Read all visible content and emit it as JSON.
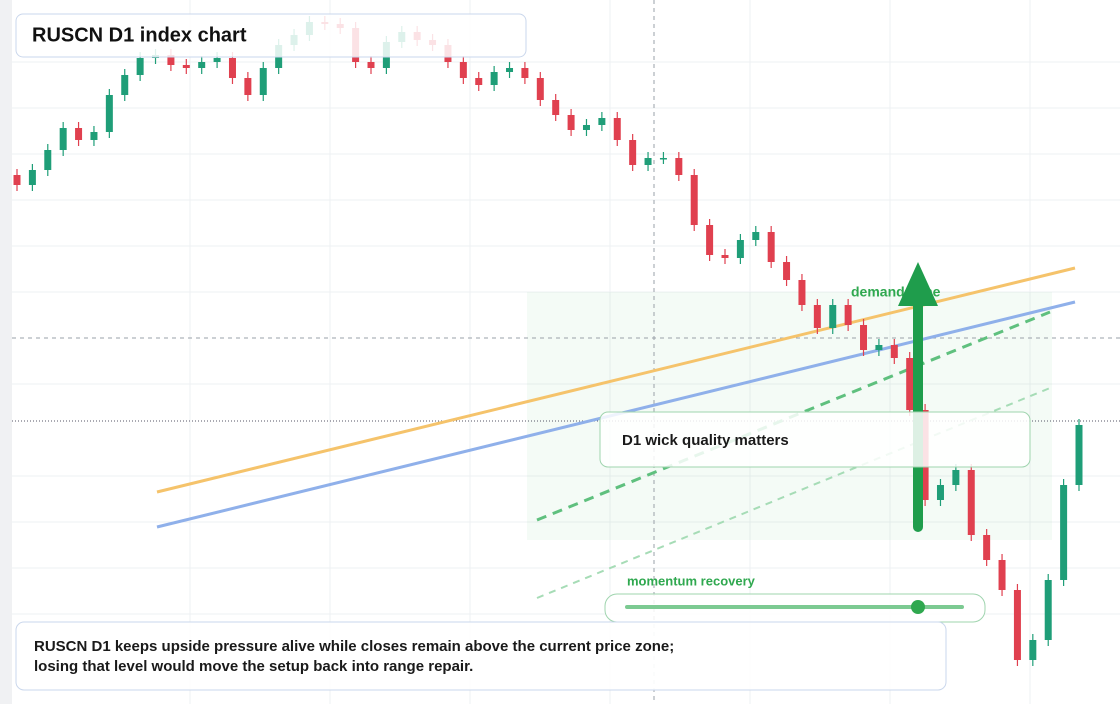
{
  "chart_data": {
    "type": "candlestick",
    "title": "RUSCN D1 index chart",
    "annotations": {
      "zone": "demand zone",
      "callout": "D1 wick quality matters",
      "slider": "momentum recovery"
    },
    "note": [
      "RUSCN D1 keeps upside pressure alive while closes remain above the current price zone;",
      "losing that level would move the setup back into range repair."
    ],
    "up_color": "#1f9e78",
    "down_color": "#e0404f",
    "ylim": [
      0,
      704
    ],
    "open": [
      529,
      519,
      534,
      554,
      576,
      564,
      572,
      609,
      629,
      646,
      649,
      639,
      636,
      642,
      646,
      626,
      609,
      636,
      659,
      669,
      682,
      680,
      676,
      642,
      636,
      662,
      672,
      664,
      659,
      642,
      626,
      619,
      632,
      636,
      626,
      604,
      589,
      574,
      579,
      586,
      564,
      539,
      546,
      546,
      529,
      479,
      449,
      446,
      464,
      472,
      442,
      424,
      399,
      376,
      399,
      379,
      354,
      359,
      346,
      294,
      204,
      219,
      234,
      169,
      144,
      114,
      44,
      64,
      124,
      219
    ],
    "high": [
      535,
      540,
      560,
      582,
      582,
      578,
      615,
      635,
      652,
      655,
      655,
      645,
      648,
      652,
      652,
      632,
      642,
      665,
      675,
      688,
      688,
      686,
      682,
      648,
      668,
      678,
      678,
      670,
      665,
      648,
      632,
      638,
      642,
      642,
      632,
      610,
      595,
      585,
      592,
      592,
      570,
      552,
      552,
      552,
      535,
      485,
      455,
      470,
      478,
      478,
      448,
      430,
      405,
      405,
      405,
      385,
      365,
      365,
      352,
      300,
      225,
      240,
      240,
      175,
      150,
      120,
      70,
      130,
      225,
      285
    ],
    "low": [
      513,
      513,
      528,
      548,
      558,
      558,
      566,
      603,
      623,
      640,
      633,
      630,
      630,
      636,
      620,
      603,
      603,
      630,
      653,
      663,
      674,
      670,
      636,
      630,
      630,
      656,
      658,
      653,
      636,
      620,
      613,
      613,
      626,
      620,
      598,
      583,
      568,
      568,
      573,
      558,
      533,
      533,
      540,
      523,
      473,
      443,
      440,
      440,
      458,
      436,
      418,
      393,
      370,
      370,
      373,
      348,
      348,
      340,
      288,
      198,
      198,
      213,
      163,
      138,
      108,
      38,
      38,
      58,
      118,
      213
    ],
    "close": [
      519,
      534,
      554,
      576,
      564,
      572,
      609,
      629,
      646,
      649,
      639,
      636,
      642,
      646,
      626,
      609,
      636,
      659,
      669,
      682,
      680,
      676,
      642,
      636,
      662,
      672,
      664,
      659,
      642,
      626,
      619,
      632,
      636,
      626,
      604,
      589,
      574,
      579,
      586,
      564,
      539,
      546,
      546,
      529,
      479,
      449,
      446,
      464,
      472,
      442,
      424,
      399,
      376,
      399,
      379,
      354,
      359,
      346,
      294,
      204,
      219,
      234,
      169,
      144,
      114,
      44,
      64,
      124,
      219,
      279
    ]
  }
}
